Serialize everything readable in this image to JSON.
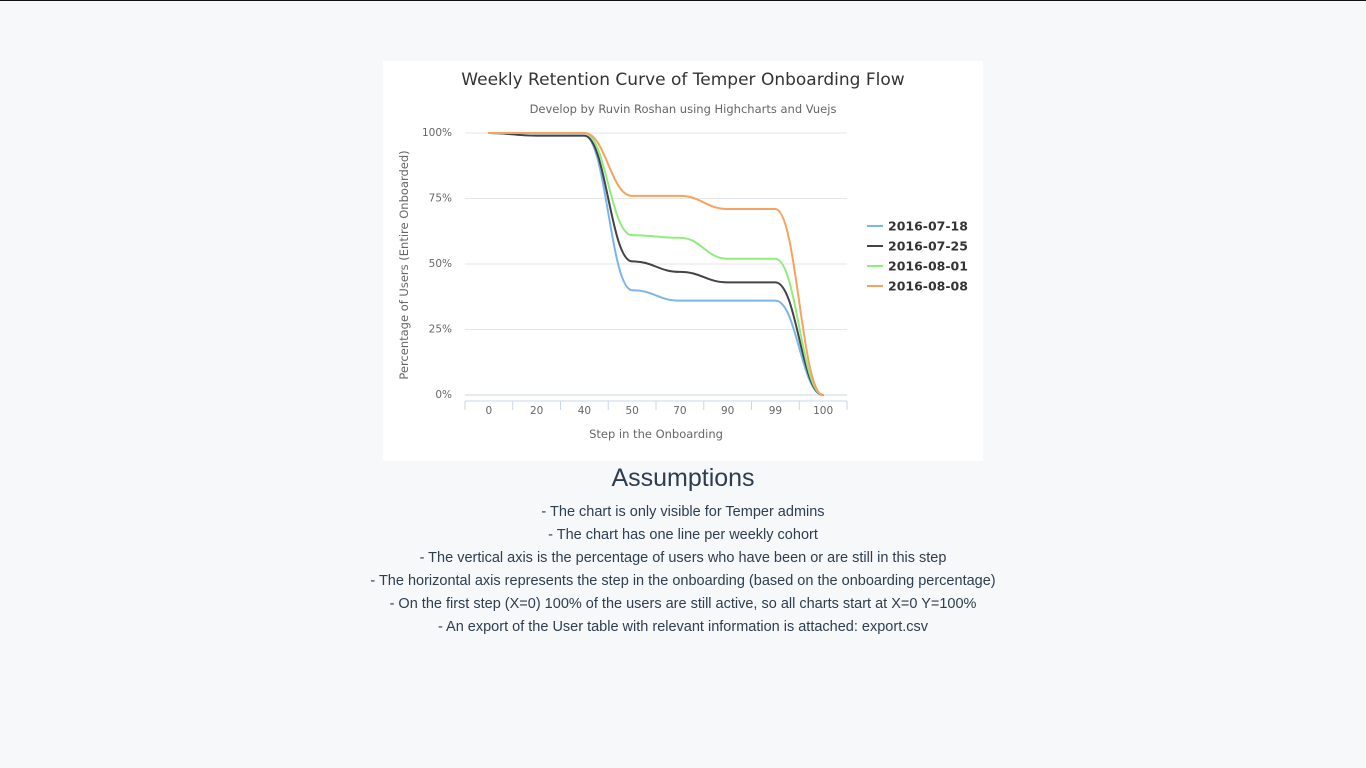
{
  "chart_data": {
    "type": "line",
    "title": "Weekly Retention Curve of Temper Onboarding Flow",
    "subtitle": "Develop by Ruvin Roshan using Highcharts and Vuejs",
    "xlabel": "Step in the Onboarding",
    "ylabel": "Percentage of Users (Entire Onboarded)",
    "categories": [
      "0",
      "20",
      "40",
      "50",
      "70",
      "90",
      "99",
      "100"
    ],
    "y_ticks": [
      "0%",
      "25%",
      "50%",
      "75%",
      "100%"
    ],
    "ylim": [
      0,
      100
    ],
    "grid": true,
    "legend_position": "right",
    "series": [
      {
        "name": "2016-07-18",
        "color": "#7cb5ec",
        "values": [
          100,
          99,
          99,
          40,
          36,
          36,
          36,
          0
        ]
      },
      {
        "name": "2016-07-25",
        "color": "#434348",
        "values": [
          100,
          99,
          99,
          51,
          47,
          43,
          43,
          0
        ]
      },
      {
        "name": "2016-08-01",
        "color": "#90ed7d",
        "values": [
          100,
          100,
          100,
          61,
          60,
          52,
          52,
          0
        ]
      },
      {
        "name": "2016-08-08",
        "color": "#f7a35c",
        "values": [
          100,
          100,
          100,
          76,
          76,
          71,
          71,
          0
        ]
      }
    ]
  },
  "assumptions": {
    "heading": "Assumptions",
    "items": [
      "- The chart is only visible for Temper admins",
      "- The chart has one line per weekly cohort",
      "- The vertical axis is the percentage of users who have been or are still in this step",
      "- The horizontal axis represents the step in the onboarding (based on the onboarding percentage)",
      "- On the first step (X=0) 100% of the users are still active, so all charts start at X=0 Y=100%",
      "- An export of the User table with relevant information is attached: export.csv"
    ]
  }
}
